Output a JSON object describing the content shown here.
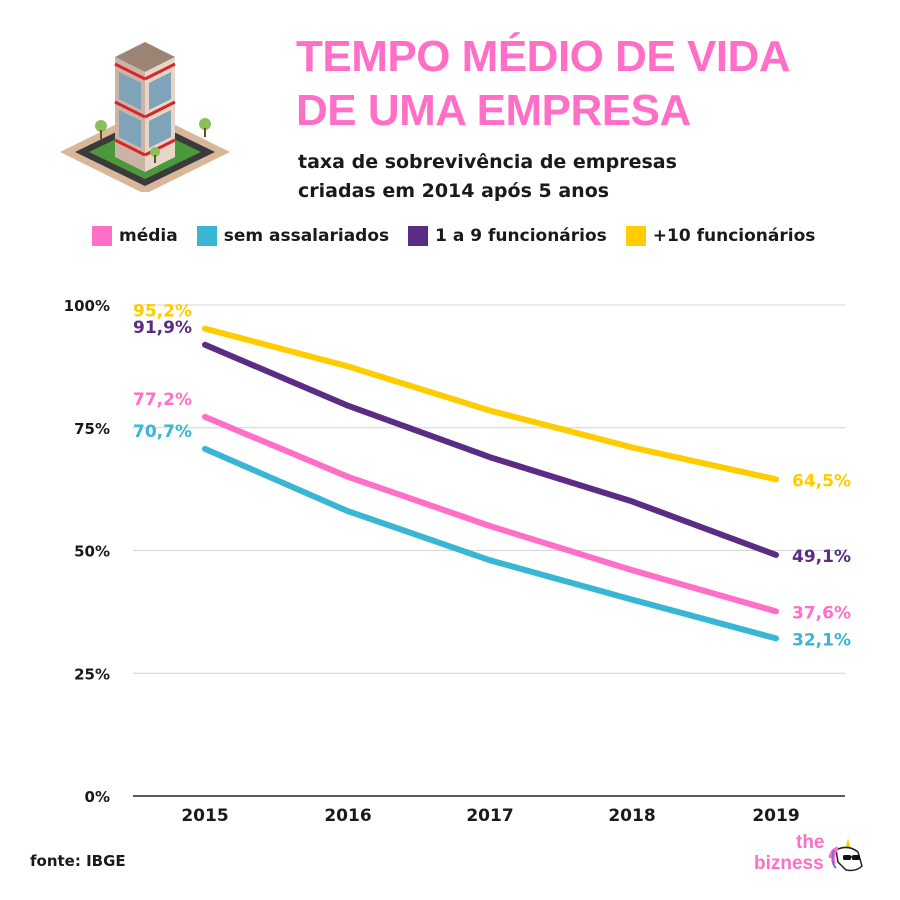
{
  "header": {
    "title_line1": "TEMPO MÉDIO DE VIDA",
    "title_line2": "DE UMA EMPRESA",
    "subtitle_line1": "taxa de sobrevivência de empresas",
    "subtitle_line2": "criadas em 2014 após 5 anos",
    "title_color": "#ff6ec7"
  },
  "illustration": {
    "icon": "building-icon"
  },
  "footer": {
    "source": "fonte: IBGE",
    "logo_the": "the",
    "logo_bizness": "bizness",
    "logo_icon": "unicorn-icon",
    "logo_color": "#ff6ec7"
  },
  "chart_data": {
    "type": "line",
    "x": [
      "2015",
      "2016",
      "2017",
      "2018",
      "2019"
    ],
    "ylim": [
      0,
      100
    ],
    "yticks": [
      0,
      25,
      50,
      75,
      100
    ],
    "ytick_labels": [
      "0%",
      "25%",
      "50%",
      "75%",
      "100%"
    ],
    "grid": true,
    "legend_position": "top",
    "series": [
      {
        "name": "média",
        "color": "#ff6ec7",
        "values": [
          77.2,
          65,
          55,
          46,
          37.6
        ],
        "start_label": "77,2%",
        "end_label": "37,6%"
      },
      {
        "name": "sem assalariados",
        "color": "#38b6d4",
        "values": [
          70.7,
          58,
          48,
          40,
          32.1
        ],
        "start_label": "70,7%",
        "end_label": "32,1%"
      },
      {
        "name": "1 a 9 funcionários",
        "color": "#5b2c83",
        "values": [
          91.9,
          79.5,
          69,
          60,
          49.1
        ],
        "start_label": "91,9%",
        "end_label": "49,1%"
      },
      {
        "name": "+10 funcionários",
        "color": "#ffcc00",
        "values": [
          95.2,
          87.5,
          78.5,
          71,
          64.5
        ],
        "start_label": "95,2%",
        "end_label": "64,5%"
      }
    ]
  }
}
